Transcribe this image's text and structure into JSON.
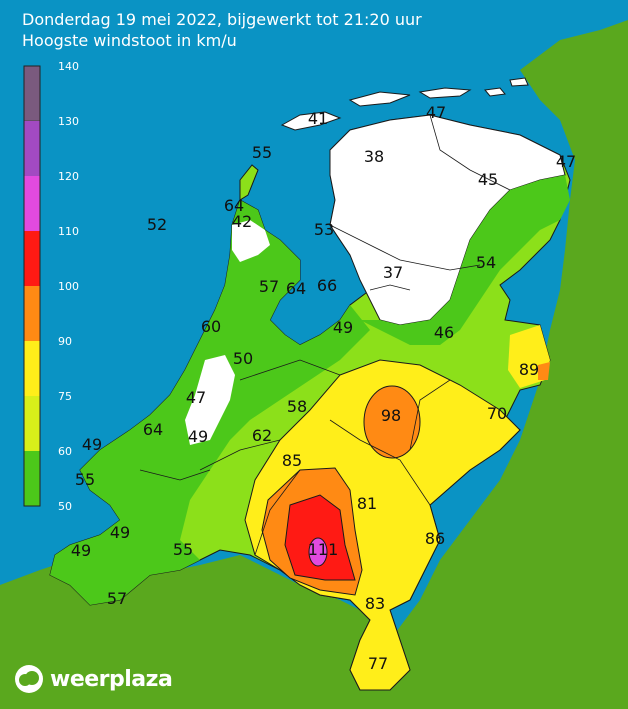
{
  "header": {
    "line1": "Donderdag 19 mei 2022, bijgewerkt tot 21:20 uur",
    "line2": "Hoogste windstoot in km/u"
  },
  "legend": {
    "ticks": [
      "140",
      "130",
      "120",
      "110",
      "100",
      "90",
      "75",
      "60",
      "50"
    ],
    "colors": [
      "#7a5a7e",
      "#a24ac2",
      "#e24adf",
      "#ff1a14",
      "#ff8a14",
      "#ffee1a",
      "#d8ef1a",
      "#8fe11a",
      "#4cc81a"
    ]
  },
  "brand": {
    "name": "weerplaza"
  },
  "map_values": {
    "labels": [
      "41",
      "47",
      "55",
      "38",
      "47",
      "45",
      "64",
      "42",
      "52",
      "53",
      "37",
      "54",
      "57",
      "64",
      "66",
      "60",
      "49",
      "46",
      "50",
      "89",
      "47",
      "98",
      "58",
      "70",
      "49",
      "64",
      "49",
      "62",
      "85",
      "55",
      "81",
      "49",
      "111",
      "49",
      "55",
      "86",
      "83",
      "57",
      "77"
    ]
  }
}
